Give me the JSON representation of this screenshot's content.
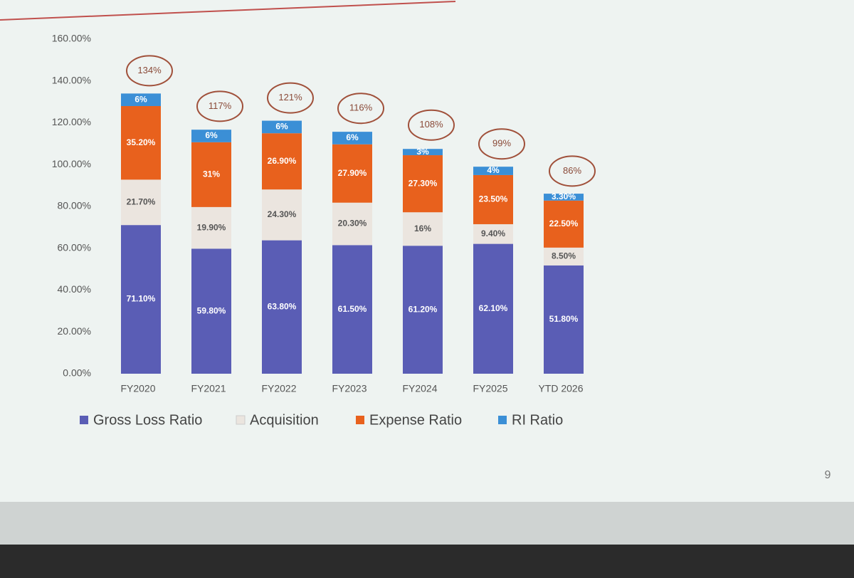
{
  "chart_data": {
    "type": "stacked_bar",
    "categories": [
      "FY2020",
      "FY2021",
      "FY2022",
      "FY2023",
      "FY2024",
      "FY2025",
      "YTD 2026"
    ],
    "series": [
      {
        "name": "Gross Loss Ratio",
        "color": "#5a5db5",
        "values": [
          71.1,
          59.8,
          63.8,
          61.5,
          61.2,
          62.1,
          51.8
        ],
        "value_labels": [
          "71.10%",
          "59.80%",
          "63.80%",
          "61.50%",
          "61.20%",
          "62.10%",
          "51.80%"
        ]
      },
      {
        "name": "Acquisition",
        "color": "#ebe5df",
        "values": [
          21.7,
          19.9,
          24.3,
          20.3,
          16,
          9.4,
          8.5
        ],
        "value_labels": [
          "21.70%",
          "19.90%",
          "24.30%",
          "20.30%",
          "16%",
          "9.40%",
          "8.50%"
        ]
      },
      {
        "name": "Expense Ratio",
        "color": "#e8611d",
        "values": [
          35.2,
          31,
          26.9,
          27.9,
          27.3,
          23.5,
          22.5
        ],
        "value_labels": [
          "35.20%",
          "31%",
          "26.90%",
          "27.90%",
          "27.30%",
          "23.50%",
          "22.50%"
        ]
      },
      {
        "name": "RI Ratio",
        "color": "#3b8fd6",
        "values": [
          6,
          6,
          6,
          6,
          3,
          4,
          3.3
        ],
        "value_labels": [
          "6%",
          "6%",
          "6%",
          "6%",
          "3%",
          "4%",
          "3.30%"
        ]
      }
    ],
    "totals": {
      "values": [
        134,
        117,
        121,
        116,
        108,
        99,
        86
      ],
      "value_labels": [
        "134%",
        "117%",
        "121%",
        "116%",
        "108%",
        "99%",
        "86%"
      ]
    },
    "ylim": [
      0,
      160
    ],
    "yticks": [
      {
        "value": 0,
        "label": "0.00%"
      },
      {
        "value": 20,
        "label": "20.00%"
      },
      {
        "value": 40,
        "label": "40.00%"
      },
      {
        "value": 60,
        "label": "60.00%"
      },
      {
        "value": 80,
        "label": "80.00%"
      },
      {
        "value": 100,
        "label": "100.00%"
      },
      {
        "value": 120,
        "label": "120.00%"
      },
      {
        "value": 140,
        "label": "140.00%"
      },
      {
        "value": 160,
        "label": "160.00%"
      }
    ],
    "page_number": "9"
  }
}
